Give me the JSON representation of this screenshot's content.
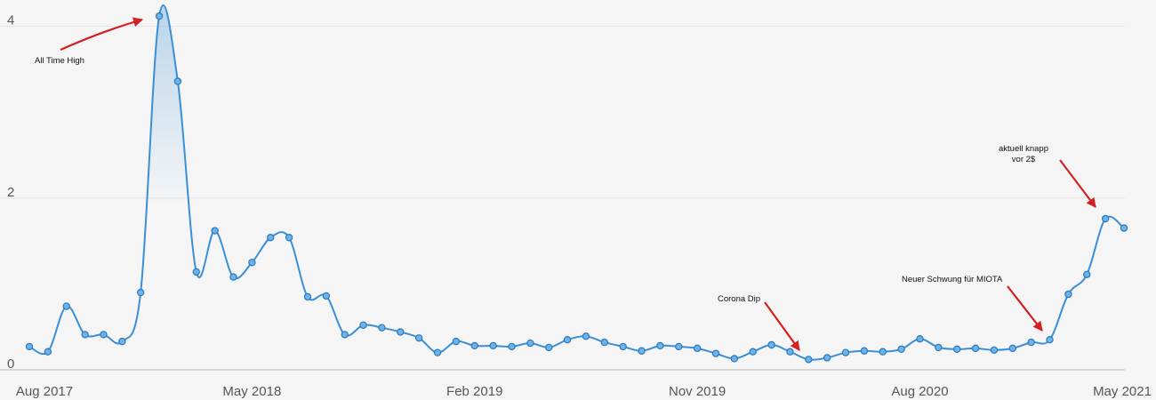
{
  "chart_data": {
    "type": "line",
    "categories": [
      "Aug 2017",
      null,
      null,
      null,
      null,
      null,
      null,
      null,
      null,
      null,
      null,
      null,
      "May 2018",
      null,
      null,
      null,
      null,
      null,
      null,
      null,
      null,
      null,
      null,
      null,
      "Feb 2019",
      null,
      null,
      null,
      null,
      null,
      null,
      null,
      null,
      null,
      null,
      null,
      "Nov 2019",
      null,
      null,
      null,
      null,
      null,
      null,
      null,
      null,
      null,
      null,
      null,
      "Aug 2020",
      null,
      null,
      null,
      null,
      null,
      null,
      null,
      null,
      null,
      null,
      "May 2021"
    ],
    "series": [
      {
        "name": "MIOTA",
        "color": "#3a8fd6",
        "values": [
          0.27,
          0.21,
          0.74,
          0.41,
          0.41,
          0.33,
          0.9,
          4.12,
          3.36,
          1.14,
          1.62,
          1.08,
          1.25,
          1.54,
          1.54,
          0.85,
          0.86,
          0.41,
          0.52,
          0.49,
          0.44,
          0.37,
          0.2,
          0.33,
          0.28,
          0.28,
          0.27,
          0.31,
          0.26,
          0.35,
          0.39,
          0.32,
          0.27,
          0.22,
          0.28,
          0.27,
          0.25,
          0.19,
          0.13,
          0.21,
          0.29,
          0.21,
          0.12,
          0.14,
          0.2,
          0.22,
          0.21,
          0.24,
          0.36,
          0.26,
          0.24,
          0.25,
          0.23,
          0.25,
          0.32,
          0.35,
          0.88,
          1.11,
          1.76,
          1.65
        ]
      }
    ],
    "ylim": [
      0,
      4.1
    ],
    "yticks": [
      0,
      2,
      4
    ],
    "grid": true,
    "annotations": [
      "All Time High",
      "Corona Dip",
      "Neuer Schwung für MIOTA",
      [
        "aktuell knapp",
        "vor 2$"
      ]
    ]
  }
}
